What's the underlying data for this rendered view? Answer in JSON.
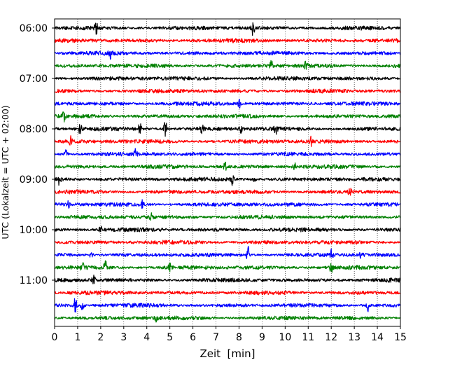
{
  "chart_data": {
    "type": "line",
    "title": "",
    "xlabel": "Zeit  [min]",
    "ylabel": "UTC (Lokalzeit = UTC + 02:00)",
    "xlim": [
      0,
      15
    ],
    "x_ticks": [
      "0",
      "1",
      "2",
      "3",
      "4",
      "5",
      "6",
      "7",
      "8",
      "9",
      "10",
      "11",
      "12",
      "13",
      "14",
      "15"
    ],
    "y_ticks": [
      "06:00",
      "07:00",
      "08:00",
      "09:00",
      "10:00",
      "11:00"
    ],
    "grid": "vertical dotted at each minute",
    "legend": "none",
    "trace_interval_minutes": 15,
    "color_cycle": [
      "#000000",
      "#ff0000",
      "#0000ff",
      "#008000"
    ],
    "series": [
      {
        "start": "06:00",
        "color": "#000000",
        "events": [
          {
            "t": 1.8,
            "a": 0.45
          },
          {
            "t": 8.6,
            "a": 0.7
          }
        ]
      },
      {
        "start": "06:15",
        "color": "#ff0000",
        "events": []
      },
      {
        "start": "06:30",
        "color": "#0000ff",
        "events": [
          {
            "t": 2.4,
            "a": 0.35
          }
        ]
      },
      {
        "start": "06:45",
        "color": "#008000",
        "events": [
          {
            "t": 9.4,
            "a": 0.35
          },
          {
            "t": 10.9,
            "a": 0.35
          }
        ]
      },
      {
        "start": "07:00",
        "color": "#000000",
        "events": []
      },
      {
        "start": "07:15",
        "color": "#ff0000",
        "events": []
      },
      {
        "start": "07:30",
        "color": "#0000ff",
        "events": [
          {
            "t": 8.0,
            "a": 0.35
          }
        ]
      },
      {
        "start": "07:45",
        "color": "#008000",
        "events": [
          {
            "t": 0.4,
            "a": 0.4
          }
        ]
      },
      {
        "start": "08:00",
        "color": "#000000",
        "events": [
          {
            "t": 1.1,
            "a": 0.45
          },
          {
            "t": 3.7,
            "a": 0.4
          },
          {
            "t": 4.8,
            "a": 0.7
          },
          {
            "t": 6.4,
            "a": 0.45
          },
          {
            "t": 8.1,
            "a": 0.4
          },
          {
            "t": 9.6,
            "a": 0.35
          }
        ]
      },
      {
        "start": "08:15",
        "color": "#ff0000",
        "events": [
          {
            "t": 0.7,
            "a": 0.35
          },
          {
            "t": 11.1,
            "a": 0.4
          }
        ]
      },
      {
        "start": "08:30",
        "color": "#0000ff",
        "events": [
          {
            "t": 0.5,
            "a": 0.4
          },
          {
            "t": 3.5,
            "a": 0.3
          }
        ]
      },
      {
        "start": "08:45",
        "color": "#008000",
        "events": [
          {
            "t": 7.4,
            "a": 0.3
          },
          {
            "t": 10.4,
            "a": 0.3
          }
        ]
      },
      {
        "start": "09:00",
        "color": "#000000",
        "events": [
          {
            "t": 0.2,
            "a": 0.4
          },
          {
            "t": 7.7,
            "a": 0.4
          },
          {
            "t": 8.7,
            "a": 0.35
          }
        ]
      },
      {
        "start": "09:15",
        "color": "#ff0000",
        "events": [
          {
            "t": 12.8,
            "a": 0.3
          }
        ]
      },
      {
        "start": "09:30",
        "color": "#0000ff",
        "events": [
          {
            "t": 0.6,
            "a": 0.3
          },
          {
            "t": 3.8,
            "a": 0.3
          }
        ]
      },
      {
        "start": "09:45",
        "color": "#008000",
        "events": [
          {
            "t": 4.2,
            "a": 0.3
          }
        ]
      },
      {
        "start": "10:00",
        "color": "#000000",
        "events": [
          {
            "t": 2.0,
            "a": 0.3
          }
        ]
      },
      {
        "start": "10:15",
        "color": "#ff0000",
        "events": []
      },
      {
        "start": "10:30",
        "color": "#0000ff",
        "events": [
          {
            "t": 1.6,
            "a": 0.3
          },
          {
            "t": 8.4,
            "a": 0.6
          },
          {
            "t": 12.0,
            "a": 0.4
          },
          {
            "t": 13.3,
            "a": 0.3
          }
        ]
      },
      {
        "start": "10:45",
        "color": "#008000",
        "events": [
          {
            "t": 1.2,
            "a": 0.45
          },
          {
            "t": 2.2,
            "a": 0.5
          },
          {
            "t": 5.0,
            "a": 0.35
          },
          {
            "t": 12.0,
            "a": 0.45
          }
        ]
      },
      {
        "start": "11:00",
        "color": "#000000",
        "events": [
          {
            "t": 1.7,
            "a": 0.45
          }
        ]
      },
      {
        "start": "11:15",
        "color": "#ff0000",
        "events": []
      },
      {
        "start": "11:30",
        "color": "#0000ff",
        "events": [
          {
            "t": 0.9,
            "a": 0.6
          },
          {
            "t": 1.2,
            "a": 0.4
          },
          {
            "t": 13.6,
            "a": 0.45
          }
        ]
      },
      {
        "start": "11:45",
        "color": "#008000",
        "events": [
          {
            "t": 4.4,
            "a": 0.3
          }
        ]
      }
    ]
  }
}
